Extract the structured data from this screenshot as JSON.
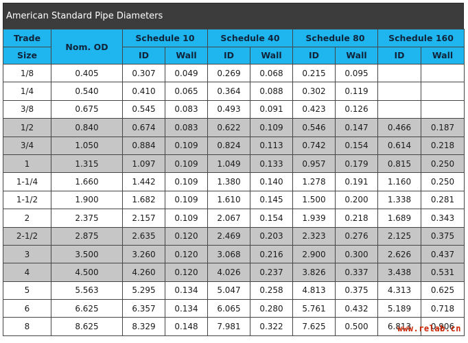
{
  "title": "American Standard Pipe Diameters",
  "header": {
    "trade": "Trade",
    "size": "Size",
    "nom_od": "Nom. OD",
    "schedules": [
      "Schedule 10",
      "Schedule 40",
      "Schedule 80",
      "Schedule 160"
    ],
    "id": "ID",
    "wall": "Wall"
  },
  "rows": [
    {
      "size": "1/8",
      "od": "0.405",
      "v": [
        "0.307",
        "0.049",
        "0.269",
        "0.068",
        "0.215",
        "0.095",
        "",
        ""
      ],
      "shaded": false
    },
    {
      "size": "1/4",
      "od": "0.540",
      "v": [
        "0.410",
        "0.065",
        "0.364",
        "0.088",
        "0.302",
        "0.119",
        "",
        ""
      ],
      "shaded": false
    },
    {
      "size": "3/8",
      "od": "0.675",
      "v": [
        "0.545",
        "0.083",
        "0.493",
        "0.091",
        "0.423",
        "0.126",
        "",
        ""
      ],
      "shaded": false
    },
    {
      "size": "1/2",
      "od": "0.840",
      "v": [
        "0.674",
        "0.083",
        "0.622",
        "0.109",
        "0.546",
        "0.147",
        "0.466",
        "0.187"
      ],
      "shaded": true
    },
    {
      "size": "3/4",
      "od": "1.050",
      "v": [
        "0.884",
        "0.109",
        "0.824",
        "0.113",
        "0.742",
        "0.154",
        "0.614",
        "0.218"
      ],
      "shaded": true
    },
    {
      "size": "1",
      "od": "1.315",
      "v": [
        "1.097",
        "0.109",
        "1.049",
        "0.133",
        "0.957",
        "0.179",
        "0.815",
        "0.250"
      ],
      "shaded": true
    },
    {
      "size": "1-1/4",
      "od": "1.660",
      "v": [
        "1.442",
        "0.109",
        "1.380",
        "0.140",
        "1.278",
        "0.191",
        "1.160",
        "0.250"
      ],
      "shaded": false
    },
    {
      "size": "1-1/2",
      "od": "1.900",
      "v": [
        "1.682",
        "0.109",
        "1.610",
        "0.145",
        "1.500",
        "0.200",
        "1.338",
        "0.281"
      ],
      "shaded": false
    },
    {
      "size": "2",
      "od": "2.375",
      "v": [
        "2.157",
        "0.109",
        "2.067",
        "0.154",
        "1.939",
        "0.218",
        "1.689",
        "0.343"
      ],
      "shaded": false
    },
    {
      "size": "2-1/2",
      "od": "2.875",
      "v": [
        "2.635",
        "0.120",
        "2.469",
        "0.203",
        "2.323",
        "0.276",
        "2.125",
        "0.375"
      ],
      "shaded": true
    },
    {
      "size": "3",
      "od": "3.500",
      "v": [
        "3.260",
        "0.120",
        "3.068",
        "0.216",
        "2.900",
        "0.300",
        "2.626",
        "0.437"
      ],
      "shaded": true
    },
    {
      "size": "4",
      "od": "4.500",
      "v": [
        "4.260",
        "0.120",
        "4.026",
        "0.237",
        "3.826",
        "0.337",
        "3.438",
        "0.531"
      ],
      "shaded": true
    },
    {
      "size": "5",
      "od": "5.563",
      "v": [
        "5.295",
        "0.134",
        "5.047",
        "0.258",
        "4.813",
        "0.375",
        "4.313",
        "0.625"
      ],
      "shaded": false
    },
    {
      "size": "6",
      "od": "6.625",
      "v": [
        "6.357",
        "0.134",
        "6.065",
        "0.280",
        "5.761",
        "0.432",
        "5.189",
        "0.718"
      ],
      "shaded": false
    },
    {
      "size": "8",
      "od": "8.625",
      "v": [
        "8.329",
        "0.148",
        "7.981",
        "0.322",
        "7.625",
        "0.500",
        "6.813",
        "0.906"
      ],
      "shaded": false
    }
  ],
  "watermark": "www.relab.cn",
  "colors": {
    "header_bg": "#1fb6f0",
    "title_bg": "#3c3c3c",
    "shaded_row": "#c6c6c6"
  }
}
